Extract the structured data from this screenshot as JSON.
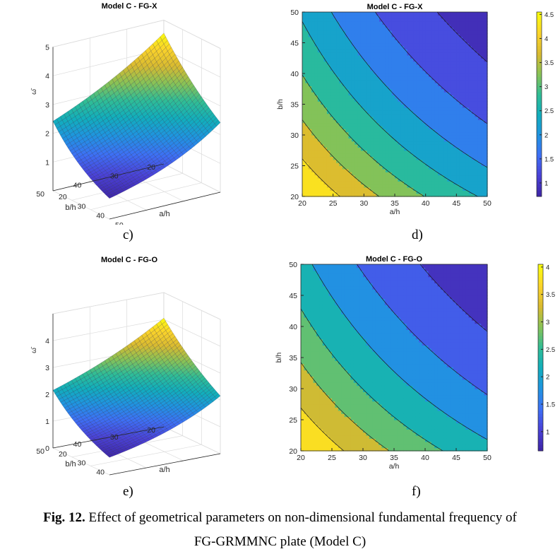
{
  "colors": {
    "parula": [
      "#3e26a8",
      "#4a42d8",
      "#3d70f5",
      "#1f94e0",
      "#11aebc",
      "#30bd95",
      "#88c256",
      "#d8ba30",
      "#fbd32a",
      "#f9fb0e"
    ]
  },
  "panel_labels": {
    "c": "c)",
    "d": "d)",
    "e": "e)",
    "f": "f)"
  },
  "caption": {
    "prefix": "Fig. 12.",
    "line1": "Effect of geometrical parameters on non-dimensional fundamental frequency of",
    "line2": "FG-GRMMNC plate (Model C)"
  },
  "chart_data": [
    {
      "type": "surface",
      "title": "Model C - FG-X",
      "xlabel": "a/h",
      "ylabel": "b/h",
      "zlabel": "ω̄",
      "xlim": [
        20,
        50
      ],
      "ylim": [
        20,
        50
      ],
      "zlim": [
        0,
        5
      ],
      "xticks": [
        "20",
        "30",
        "40",
        "50"
      ],
      "yticks": [
        "20",
        "30",
        "40",
        "50"
      ],
      "zticks": [
        "1",
        "2",
        "3",
        "4",
        "5"
      ],
      "corner_values": {
        "a20_b20": 4.55,
        "a50_b20": 2.42,
        "a20_b50": 2.42,
        "a50_b50": 0.72
      }
    },
    {
      "type": "contour",
      "title": "Model C - FG-X",
      "xlabel": "a/h",
      "ylabel": "b/h",
      "xlim": [
        20,
        50
      ],
      "ylim": [
        20,
        50
      ],
      "xticks": [
        "20",
        "25",
        "30",
        "35",
        "40",
        "45",
        "50"
      ],
      "yticks": [
        "20",
        "25",
        "30",
        "35",
        "40",
        "45",
        "50"
      ],
      "levels": [
        1,
        1.5,
        2,
        2.5,
        3,
        3.5,
        4
      ],
      "colorbar": {
        "ticks": [
          "1",
          "1.5",
          "2",
          "2.5",
          "3",
          "3.5",
          "4",
          "4.5"
        ],
        "range": [
          0.72,
          4.55
        ]
      }
    },
    {
      "type": "surface",
      "title": "Model C - FG-O",
      "xlabel": "a/h",
      "ylabel": "b/h",
      "zlabel": "ω̄",
      "xlim": [
        20,
        50
      ],
      "ylim": [
        20,
        50
      ],
      "zlim": [
        0,
        5
      ],
      "xticks": [
        "20",
        "30",
        "40",
        "50"
      ],
      "yticks": [
        "20",
        "30",
        "40",
        "50"
      ],
      "zticks": [
        "0",
        "1",
        "2",
        "3",
        "4"
      ],
      "corner_values": {
        "a20_b20": 4.05,
        "a50_b20": 2.15,
        "a50_b50": 0.65
      }
    },
    {
      "type": "contour",
      "title": "Model C - FG-O",
      "xlabel": "a/h",
      "ylabel": "b/h",
      "xlim": [
        20,
        50
      ],
      "ylim": [
        20,
        50
      ],
      "xticks": [
        "20",
        "25",
        "30",
        "35",
        "40",
        "45",
        "50"
      ],
      "yticks": [
        "20",
        "25",
        "30",
        "35",
        "40",
        "45",
        "50"
      ],
      "levels": [
        1,
        1.5,
        2,
        2.5,
        3,
        3.5
      ],
      "colorbar": {
        "ticks": [
          "1",
          "1.5",
          "2",
          "2.5",
          "3",
          "3.5",
          "4"
        ],
        "range": [
          0.65,
          4.05
        ]
      }
    }
  ]
}
